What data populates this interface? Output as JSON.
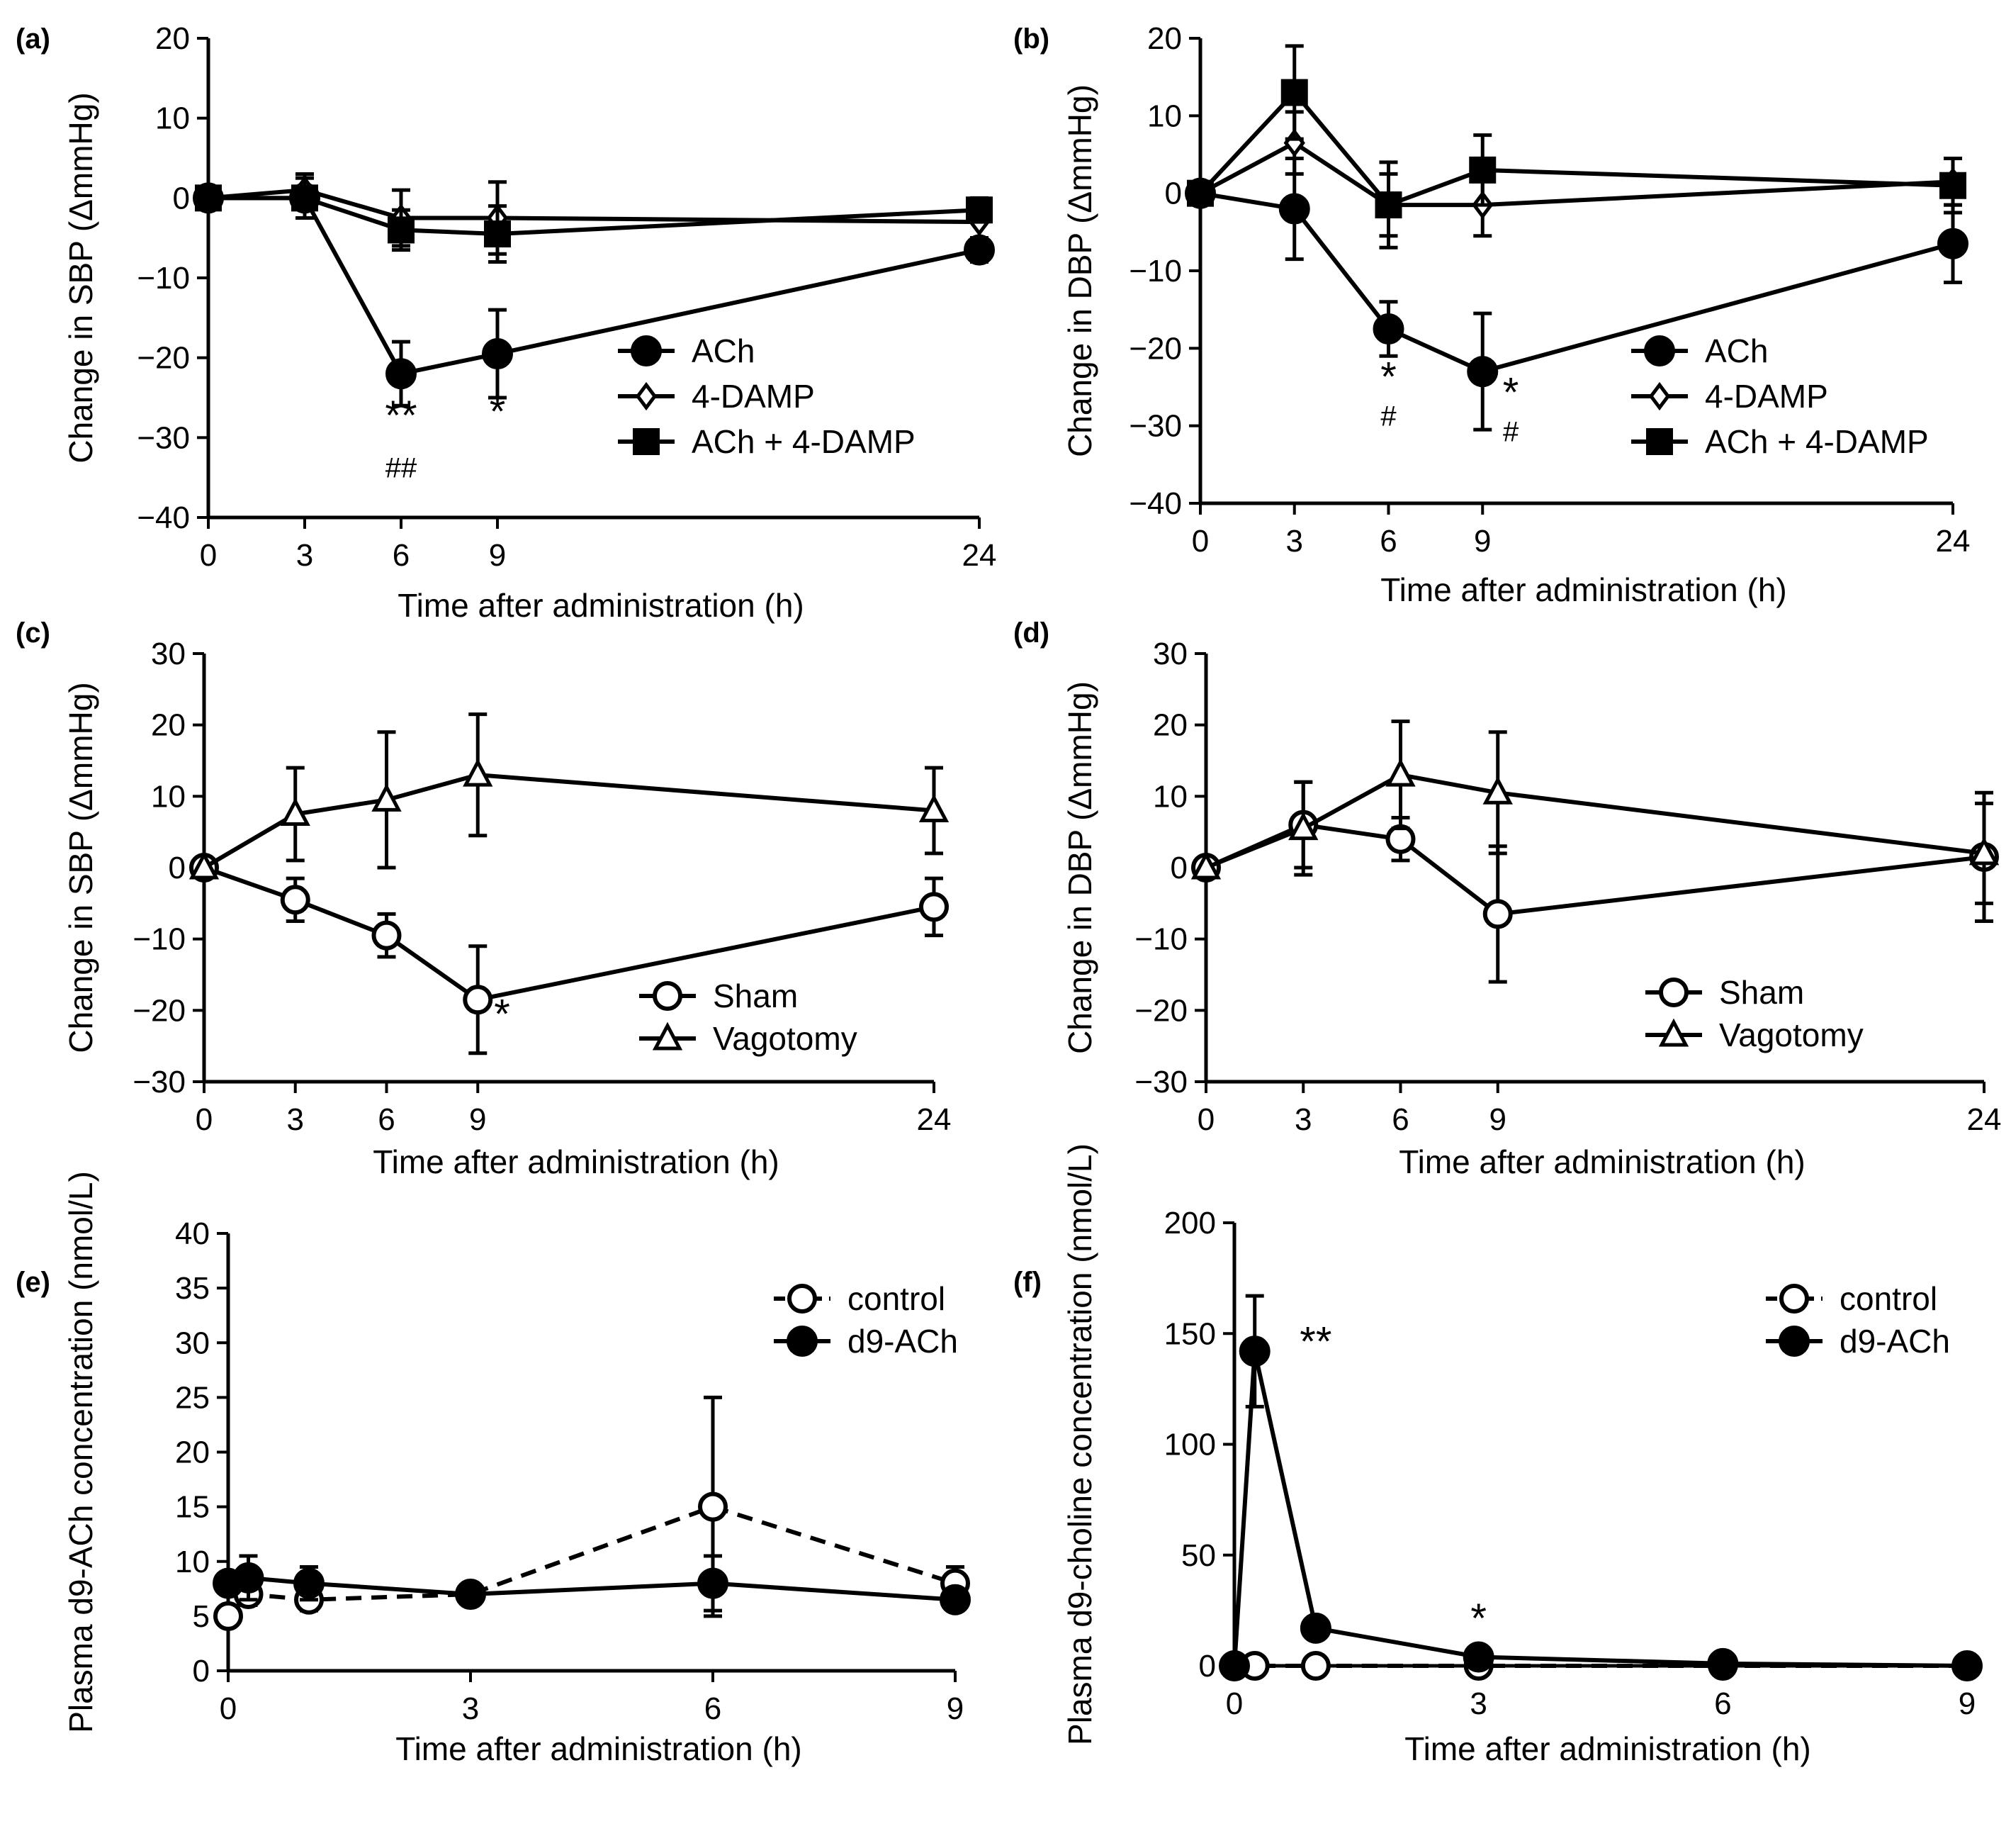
{
  "figure": {
    "panels": [
      {
        "id": "a",
        "label": "(a)"
      },
      {
        "id": "b",
        "label": "(b)"
      },
      {
        "id": "c",
        "label": "(c)"
      },
      {
        "id": "d",
        "label": "(d)"
      },
      {
        "id": "e",
        "label": "(e)"
      },
      {
        "id": "f",
        "label": "(f)"
      }
    ]
  },
  "chart_data": [
    {
      "id": "a",
      "type": "line",
      "panel_label": "(a)",
      "xlabel": "Time after administration (h)",
      "ylabel": "Change in  SBP (ΔmmHg)",
      "ylim": [
        -40,
        20
      ],
      "yticks": [
        20,
        10,
        0,
        -10,
        -20,
        -30,
        -40
      ],
      "yticklabels": [
        "20",
        "10",
        "0",
        "−10",
        "−20",
        "−30",
        "−40"
      ],
      "xticks": [
        0,
        3,
        6,
        9,
        24
      ],
      "xticklabels": [
        "0",
        "3",
        "6",
        "9",
        "24"
      ],
      "legend_position": "lower-right",
      "series": [
        {
          "name": "ACh",
          "marker": "filled-circle",
          "line": "solid",
          "x": [
            0,
            3,
            6,
            9,
            24
          ],
          "y": [
            0,
            0,
            -22,
            -19.5,
            -6.5
          ],
          "err": [
            0,
            2.5,
            4,
            5.5,
            1.5
          ]
        },
        {
          "name": "4-DAMP",
          "marker": "open-diamond",
          "line": "solid",
          "x": [
            0,
            3,
            6,
            9,
            24
          ],
          "y": [
            0,
            1,
            -2.5,
            -2.5,
            -3
          ],
          "err": [
            0,
            2,
            3.5,
            4.5,
            2
          ]
        },
        {
          "name": "ACh + 4-DAMP",
          "marker": "filled-square",
          "line": "solid",
          "x": [
            0,
            3,
            6,
            9,
            24
          ],
          "y": [
            0,
            0,
            -4,
            -4.5,
            -1.5
          ],
          "err": [
            0,
            2.5,
            2.5,
            3.5,
            1.5
          ]
        }
      ],
      "annotations": [
        {
          "text": "**",
          "x": 6,
          "y": -29,
          "size": "large"
        },
        {
          "text": "##",
          "x": 6,
          "y": -35,
          "size": "small"
        },
        {
          "text": "*",
          "x": 9,
          "y": -28.5,
          "size": "large"
        }
      ]
    },
    {
      "id": "b",
      "type": "line",
      "panel_label": "(b)",
      "xlabel": "Time after administration (h)",
      "ylabel": "Change in  DBP (ΔmmHg)",
      "ylim": [
        -40,
        20
      ],
      "yticks": [
        20,
        10,
        0,
        -10,
        -20,
        -30,
        -40
      ],
      "yticklabels": [
        "20",
        "10",
        "0",
        "−10",
        "−20",
        "−30",
        "−40"
      ],
      "xticks": [
        0,
        3,
        6,
        9,
        24
      ],
      "xticklabels": [
        "0",
        "3",
        "6",
        "9",
        "24"
      ],
      "legend_position": "lower-right",
      "series": [
        {
          "name": "ACh",
          "marker": "filled-circle",
          "line": "solid",
          "x": [
            0,
            3,
            6,
            9,
            24
          ],
          "y": [
            0,
            -2,
            -17.5,
            -23,
            -6.5
          ],
          "err": [
            0,
            6.5,
            3.5,
            7.5,
            5
          ]
        },
        {
          "name": "4-DAMP",
          "marker": "open-diamond",
          "line": "solid",
          "x": [
            0,
            3,
            6,
            9,
            24
          ],
          "y": [
            0,
            6.5,
            -1.5,
            -1.5,
            1.5
          ],
          "err": [
            0,
            4,
            4,
            4,
            3
          ]
        },
        {
          "name": "ACh + 4-DAMP",
          "marker": "filled-square",
          "line": "solid",
          "x": [
            0,
            3,
            6,
            9,
            24
          ],
          "y": [
            0,
            13,
            -1.5,
            3,
            1
          ],
          "err": [
            0,
            6,
            5.5,
            4.5,
            3.5
          ]
        }
      ],
      "annotations": [
        {
          "text": "*",
          "x": 6,
          "y": -25.5,
          "size": "large"
        },
        {
          "text": "#",
          "x": 6,
          "y": -30,
          "size": "small"
        },
        {
          "text": "*",
          "x": 9.9,
          "y": -27.5,
          "size": "large"
        },
        {
          "text": "#",
          "x": 9.9,
          "y": -32,
          "size": "small"
        }
      ]
    },
    {
      "id": "c",
      "type": "line",
      "panel_label": "(c)",
      "xlabel": "Time after administration (h)",
      "ylabel": "Change in  SBP (ΔmmHg)",
      "ylim": [
        -30,
        30
      ],
      "yticks": [
        30,
        20,
        10,
        0,
        -10,
        -20,
        -30
      ],
      "yticklabels": [
        "30",
        "20",
        "10",
        "0",
        "−10",
        "−20",
        "−30"
      ],
      "xticks": [
        0,
        3,
        6,
        9,
        24
      ],
      "xticklabels": [
        "0",
        "3",
        "6",
        "9",
        "24"
      ],
      "legend_position": "lower-right",
      "series": [
        {
          "name": "Sham",
          "marker": "open-circle",
          "line": "solid",
          "x": [
            0,
            3,
            6,
            9,
            24
          ],
          "y": [
            0,
            -4.5,
            -9.5,
            -18.5,
            -5.5
          ],
          "err": [
            0,
            3,
            3,
            7.5,
            4
          ]
        },
        {
          "name": "Vagotomy",
          "marker": "open-triangle",
          "line": "solid",
          "x": [
            0,
            3,
            6,
            9,
            24
          ],
          "y": [
            0,
            7.5,
            9.5,
            13,
            8
          ],
          "err": [
            0,
            6.5,
            9.5,
            8.5,
            6
          ]
        }
      ],
      "annotations": [
        {
          "text": "*",
          "x": 9.8,
          "y": -22.5,
          "size": "large"
        }
      ]
    },
    {
      "id": "d",
      "type": "line",
      "panel_label": "(d)",
      "xlabel": "Time after administration (h)",
      "ylabel": "Change in  DBP (ΔmmHg)",
      "ylim": [
        -30,
        30
      ],
      "yticks": [
        30,
        20,
        10,
        0,
        -10,
        -20,
        -30
      ],
      "yticklabels": [
        "30",
        "20",
        "10",
        "0",
        "−10",
        "−20",
        "−30"
      ],
      "xticks": [
        0,
        3,
        6,
        9,
        24
      ],
      "xticklabels": [
        "0",
        "3",
        "6",
        "9",
        "24"
      ],
      "legend_position": "lower-right",
      "series": [
        {
          "name": "Sham",
          "marker": "open-circle",
          "line": "solid",
          "x": [
            0,
            3,
            6,
            9,
            24
          ],
          "y": [
            0,
            6,
            4,
            -6.5,
            1.5
          ],
          "err": [
            0,
            6,
            3,
            9.5,
            9
          ]
        },
        {
          "name": "Vagotomy",
          "marker": "open-triangle",
          "line": "solid",
          "x": [
            0,
            3,
            6,
            9,
            24
          ],
          "y": [
            0,
            5.5,
            13,
            10.5,
            2
          ],
          "err": [
            0,
            6.5,
            7.5,
            8.5,
            7
          ]
        }
      ],
      "annotations": []
    },
    {
      "id": "e",
      "type": "line",
      "panel_label": "(e)",
      "xlabel": "Time after administration (h)",
      "ylabel": "Plasma d9-ACh concentration (nmol/L)",
      "ylim": [
        0,
        40
      ],
      "yticks": [
        40,
        35,
        30,
        25,
        20,
        15,
        10,
        5,
        0
      ],
      "yticklabels": [
        "40",
        "35",
        "30",
        "25",
        "20",
        "15",
        "10",
        "5",
        "0"
      ],
      "xticks": [
        0,
        3,
        6,
        9
      ],
      "xticklabels": [
        "0",
        "3",
        "6",
        "9"
      ],
      "legend_position": "top-right",
      "series": [
        {
          "name": "control",
          "marker": "open-circle",
          "line": "dashed",
          "x": [
            0,
            0.25,
            1,
            3,
            6,
            9
          ],
          "y": [
            5,
            7,
            6.5,
            7,
            15,
            8
          ],
          "err": [
            0,
            1,
            1,
            1,
            10,
            1.5
          ]
        },
        {
          "name": "d9-ACh",
          "marker": "filled-circle",
          "line": "solid",
          "x": [
            0,
            0.25,
            1,
            3,
            6,
            9
          ],
          "y": [
            8,
            8.5,
            8,
            7,
            8,
            6.5
          ],
          "err": [
            0,
            2,
            1.5,
            1,
            2.5,
            1
          ]
        }
      ],
      "annotations": []
    },
    {
      "id": "f",
      "type": "line",
      "panel_label": "(f)",
      "xlabel": "Time after administration (h)",
      "ylabel": "Plasma d9-choline concentration (nmol/L)",
      "ylim": [
        0,
        200
      ],
      "yticks": [
        200,
        150,
        100,
        50,
        0
      ],
      "yticklabels": [
        "200",
        "150",
        "100",
        "50",
        "0"
      ],
      "xticks": [
        0,
        3,
        6,
        9
      ],
      "xticklabels": [
        "0",
        "3",
        "6",
        "9"
      ],
      "legend_position": "top-right",
      "series": [
        {
          "name": "control",
          "marker": "open-circle",
          "line": "dashed",
          "x": [
            0,
            0.25,
            1,
            3,
            6,
            9
          ],
          "y": [
            0,
            0,
            0,
            0,
            0,
            0
          ],
          "err": [
            0,
            0,
            0,
            0,
            0,
            0
          ]
        },
        {
          "name": "d9-ACh",
          "marker": "filled-circle",
          "line": "solid",
          "x": [
            0,
            0.25,
            1,
            3,
            6,
            9
          ],
          "y": [
            0,
            142,
            17,
            4,
            1,
            0
          ],
          "err": [
            0,
            25,
            4,
            2,
            0,
            0
          ]
        }
      ],
      "annotations": [
        {
          "text": "**",
          "x": 1,
          "y": 140,
          "size": "large"
        },
        {
          "text": "*",
          "x": 3,
          "y": 15,
          "size": "large"
        }
      ]
    }
  ]
}
